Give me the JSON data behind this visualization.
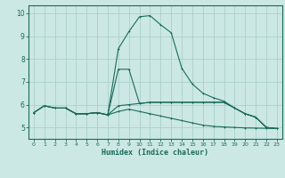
{
  "title": "",
  "xlabel": "Humidex (Indice chaleur)",
  "ylabel": "",
  "bg_color": "#cce8e4",
  "grid_color": "#aacfcb",
  "line_color": "#1a6b5a",
  "spine_color": "#1a6b5a",
  "xlim": [
    -0.5,
    23.5
  ],
  "ylim": [
    4.5,
    10.35
  ],
  "xticks": [
    0,
    1,
    2,
    3,
    4,
    5,
    6,
    7,
    8,
    9,
    10,
    11,
    12,
    13,
    14,
    15,
    16,
    17,
    18,
    19,
    20,
    21,
    22,
    23
  ],
  "yticks": [
    5,
    6,
    7,
    8,
    9,
    10
  ],
  "curve1_x": [
    0,
    1,
    2,
    3,
    4,
    5,
    6,
    7,
    8,
    9,
    10,
    11,
    12,
    13,
    14,
    15,
    16,
    17,
    18,
    19,
    20,
    21,
    22,
    23
  ],
  "curve1_y": [
    5.65,
    5.95,
    5.85,
    5.85,
    5.6,
    5.6,
    5.65,
    5.55,
    8.45,
    9.2,
    9.85,
    9.9,
    9.5,
    9.15,
    7.6,
    6.9,
    6.5,
    6.3,
    6.15,
    5.85,
    5.6,
    5.45,
    5.0,
    4.95
  ],
  "curve2_x": [
    0,
    1,
    2,
    3,
    4,
    5,
    6,
    7,
    8,
    9,
    10,
    11,
    12,
    13,
    14,
    15,
    16,
    17,
    18,
    19,
    20,
    21,
    22,
    23
  ],
  "curve2_y": [
    5.65,
    5.95,
    5.85,
    5.85,
    5.6,
    5.6,
    5.65,
    5.55,
    5.95,
    6.0,
    6.05,
    6.1,
    6.1,
    6.1,
    6.1,
    6.1,
    6.1,
    6.1,
    6.1,
    5.85,
    5.6,
    5.45,
    5.0,
    4.95
  ],
  "curve3_x": [
    3,
    4,
    5,
    6,
    7,
    8,
    9,
    10,
    11,
    12,
    13,
    14,
    15,
    16,
    17,
    18,
    19,
    20,
    21,
    22,
    23
  ],
  "curve3_y": [
    5.85,
    5.6,
    5.6,
    5.65,
    5.55,
    7.55,
    7.55,
    6.05,
    6.1,
    6.1,
    6.1,
    6.1,
    6.1,
    6.1,
    6.1,
    6.1,
    5.85,
    5.6,
    5.45,
    5.0,
    4.95
  ],
  "curve4_x": [
    0,
    1,
    2,
    3,
    4,
    5,
    6,
    7,
    8,
    9,
    10,
    11,
    12,
    13,
    14,
    15,
    16,
    17,
    18,
    19,
    20,
    21,
    22,
    23
  ],
  "curve4_y": [
    5.65,
    5.95,
    5.85,
    5.85,
    5.6,
    5.6,
    5.65,
    5.55,
    5.7,
    5.8,
    5.7,
    5.6,
    5.5,
    5.4,
    5.3,
    5.2,
    5.1,
    5.05,
    5.02,
    5.0,
    4.98,
    4.97,
    4.96,
    4.95
  ]
}
